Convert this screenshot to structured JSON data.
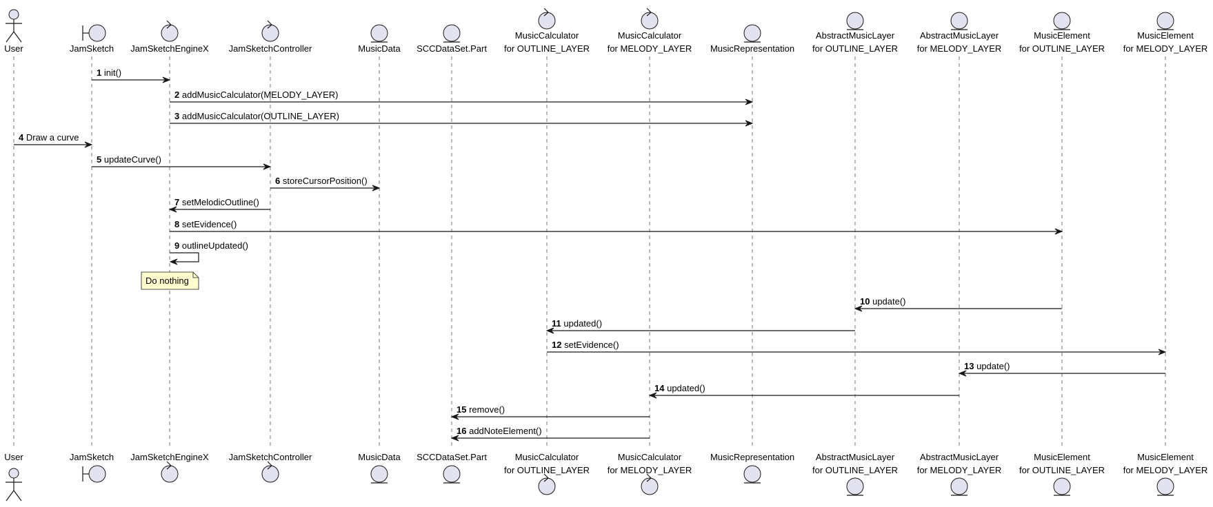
{
  "participants": [
    {
      "id": "user",
      "kind": "actor",
      "lines": [
        "User"
      ]
    },
    {
      "id": "jamsketch",
      "kind": "boundary",
      "lines": [
        "JamSketch"
      ]
    },
    {
      "id": "engine",
      "kind": "control",
      "lines": [
        "JamSketchEngineX"
      ]
    },
    {
      "id": "controller",
      "kind": "control",
      "lines": [
        "JamSketchController"
      ]
    },
    {
      "id": "musicdata",
      "kind": "entity",
      "lines": [
        "MusicData"
      ]
    },
    {
      "id": "sccpart",
      "kind": "entity",
      "lines": [
        "SCCDataSet.Part"
      ]
    },
    {
      "id": "calc_outline",
      "kind": "control",
      "lines": [
        "MusicCalculator",
        "for OUTLINE_LAYER"
      ]
    },
    {
      "id": "calc_melody",
      "kind": "control",
      "lines": [
        "MusicCalculator",
        "for MELODY_LAYER"
      ]
    },
    {
      "id": "musicrep",
      "kind": "entity",
      "lines": [
        "MusicRepresentation"
      ]
    },
    {
      "id": "layer_outline",
      "kind": "entity",
      "lines": [
        "AbstractMusicLayer",
        "for OUTLINE_LAYER"
      ]
    },
    {
      "id": "layer_melody",
      "kind": "entity",
      "lines": [
        "AbstractMusicLayer",
        "for MELODY_LAYER"
      ]
    },
    {
      "id": "elem_outline",
      "kind": "entity",
      "lines": [
        "MusicElement",
        "for OUTLINE_LAYER"
      ]
    },
    {
      "id": "elem_melody",
      "kind": "entity",
      "lines": [
        "MusicElement",
        "for MELODY_LAYER"
      ]
    }
  ],
  "messages": [
    {
      "num": "1",
      "text": "init()",
      "from": "jamsketch",
      "to": "engine"
    },
    {
      "num": "2",
      "text": "addMusicCalculator(MELODY_LAYER)",
      "from": "engine",
      "to": "musicrep"
    },
    {
      "num": "3",
      "text": "addMusicCalculator(OUTLINE_LAYER)",
      "from": "engine",
      "to": "musicrep"
    },
    {
      "num": "4",
      "text": "Draw a curve",
      "from": "user",
      "to": "jamsketch"
    },
    {
      "num": "5",
      "text": "updateCurve()",
      "from": "jamsketch",
      "to": "controller"
    },
    {
      "num": "6",
      "text": "storeCursorPosition()",
      "from": "controller",
      "to": "musicdata"
    },
    {
      "num": "7",
      "text": "setMelodicOutline()",
      "from": "controller",
      "to": "engine"
    },
    {
      "num": "8",
      "text": "setEvidence()",
      "from": "engine",
      "to": "elem_outline"
    },
    {
      "num": "9",
      "text": "outlineUpdated()",
      "from": "engine",
      "to": "engine"
    },
    {
      "num": "10",
      "text": "update()",
      "from": "elem_outline",
      "to": "layer_outline"
    },
    {
      "num": "11",
      "text": "updated()",
      "from": "layer_outline",
      "to": "calc_outline"
    },
    {
      "num": "12",
      "text": "setEvidence()",
      "from": "calc_outline",
      "to": "elem_melody"
    },
    {
      "num": "13",
      "text": "update()",
      "from": "elem_melody",
      "to": "layer_melody"
    },
    {
      "num": "14",
      "text": "updated()",
      "from": "layer_melody",
      "to": "calc_melody"
    },
    {
      "num": "15",
      "text": "remove()",
      "from": "calc_melody",
      "to": "sccpart"
    },
    {
      "num": "16",
      "text": "addNoteElement()",
      "from": "calc_melody",
      "to": "sccpart"
    }
  ],
  "notes": [
    {
      "text": "Do nothing",
      "over": "engine",
      "after_message": "9"
    }
  ],
  "colors": {
    "participant_fill": "#e2e2f0",
    "line": "#181818",
    "note_fill": "#fefece"
  }
}
